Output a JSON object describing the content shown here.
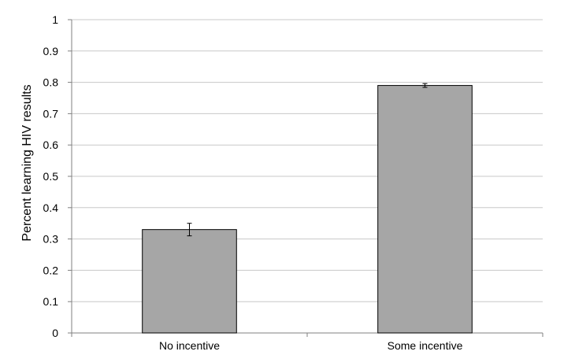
{
  "chart_data": {
    "type": "bar",
    "title": "",
    "xlabel": "",
    "ylabel": "Percent learning HIV results",
    "categories": [
      "No incentive",
      "Some incentive"
    ],
    "values": [
      0.33,
      0.79
    ],
    "error": [
      0.02,
      0.006
    ],
    "ylim": [
      0,
      1
    ],
    "yticks": [
      0,
      0.1,
      0.2,
      0.3,
      0.4,
      0.5,
      0.6,
      0.7,
      0.8,
      0.9,
      1
    ],
    "ytick_labels": [
      "0",
      "0.1",
      "0.2",
      "0.3",
      "0.4",
      "0.5",
      "0.6",
      "0.7",
      "0.8",
      "0.9",
      "1"
    ],
    "grid": true,
    "legend": "none",
    "colors": {
      "bar": "#a6a6a6",
      "bar_outline": "#000000",
      "grid": "#c8c8c8",
      "axis": "#808080",
      "error_bar": "#000000"
    }
  }
}
